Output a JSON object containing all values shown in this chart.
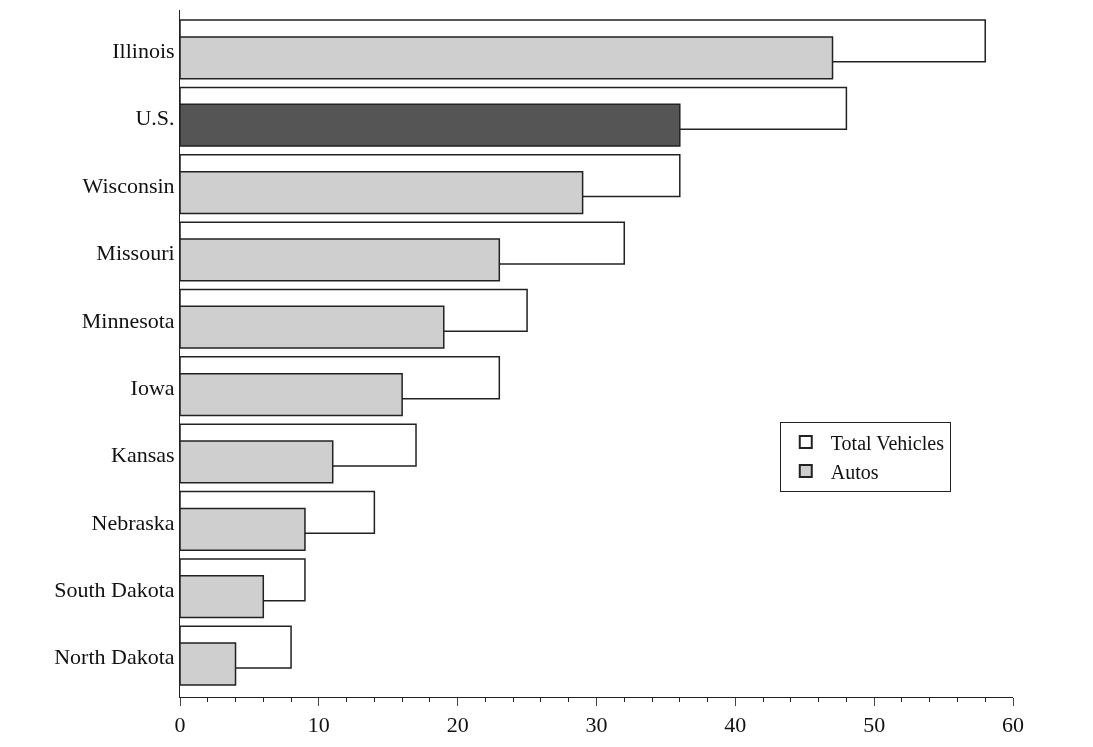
{
  "chart_data": {
    "type": "bar",
    "orientation": "horizontal",
    "categories": [
      "Illinois",
      "U.S.",
      "Wisconsin",
      "Missouri",
      "Minnesota",
      "Iowa",
      "Kansas",
      "Nebraska",
      "South Dakota",
      "North Dakota"
    ],
    "series": [
      {
        "name": "Total Vehicles",
        "color": "#ffffff",
        "values": [
          58,
          48,
          36,
          32,
          25,
          23,
          17,
          14,
          9,
          8
        ]
      },
      {
        "name": "Autos",
        "color": "#cfcfcf",
        "colors": [
          "#cfcfcf",
          "#555555",
          "#cfcfcf",
          "#cfcfcf",
          "#cfcfcf",
          "#cfcfcf",
          "#cfcfcf",
          "#cfcfcf",
          "#cfcfcf",
          "#cfcfcf"
        ],
        "values": [
          47,
          36,
          29,
          23,
          19,
          16,
          11,
          9,
          6,
          4
        ]
      }
    ],
    "xlim": [
      0,
      60
    ],
    "xticks": [
      0,
      10,
      20,
      30,
      40,
      50,
      60
    ],
    "legend": "right"
  }
}
